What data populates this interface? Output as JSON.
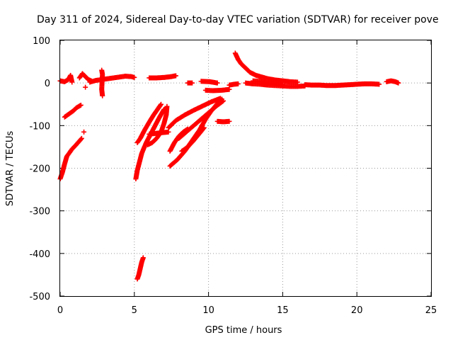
{
  "chart_data": {
    "type": "scatter",
    "title": "Day 311 of 2024, Sidereal Day-to-day VTEC variation (SDTVAR) for receiver pove",
    "xlabel": "GPS time / hours",
    "ylabel": "SDTVAR / TECUs",
    "xlim": [
      0,
      25
    ],
    "ylim": [
      -500,
      100
    ],
    "xticks": [
      0,
      5,
      10,
      15,
      20,
      25
    ],
    "yticks": [
      100,
      0,
      -100,
      -200,
      -300,
      -400,
      -500
    ],
    "grid": true,
    "marker": "plus",
    "color": "#ff0000",
    "series": [
      {
        "segments": [
          [
            [
              0.0,
              5
            ],
            [
              0.3,
              3
            ],
            [
              0.55,
              8
            ],
            [
              0.7,
              18
            ],
            [
              0.8,
              2
            ]
          ],
          [
            [
              0.0,
              -225
            ],
            [
              0.15,
              -210
            ],
            [
              0.3,
              -190
            ],
            [
              0.45,
              -172
            ],
            [
              0.6,
              -165
            ],
            [
              0.8,
              -155
            ],
            [
              1.0,
              -148
            ],
            [
              1.2,
              -140
            ],
            [
              1.45,
              -130
            ]
          ],
          [
            [
              0.3,
              -80
            ],
            [
              0.5,
              -75
            ],
            [
              0.7,
              -70
            ],
            [
              0.9,
              -65
            ],
            [
              1.1,
              -58
            ],
            [
              1.4,
              -52
            ]
          ],
          [
            [
              1.3,
              12
            ],
            [
              1.5,
              22
            ],
            [
              1.7,
              15
            ],
            [
              1.9,
              8
            ],
            [
              2.1,
              5
            ]
          ],
          [
            [
              1.6,
              -115
            ]
          ],
          [
            [
              1.7,
              -10
            ]
          ],
          [
            [
              2.0,
              2
            ],
            [
              2.4,
              6
            ],
            [
              2.8,
              8
            ],
            [
              3.2,
              10
            ],
            [
              3.6,
              12
            ],
            [
              4.0,
              14
            ],
            [
              4.4,
              16
            ],
            [
              4.8,
              15
            ],
            [
              5.0,
              13
            ]
          ],
          [
            [
              2.8,
              30
            ],
            [
              2.85,
              20
            ],
            [
              2.8,
              -15
            ],
            [
              2.85,
              -30
            ]
          ],
          [
            [
              5.1,
              -225
            ],
            [
              5.2,
              -205
            ],
            [
              5.35,
              -185
            ],
            [
              5.5,
              -165
            ],
            [
              5.8,
              -140
            ],
            [
              6.1,
              -120
            ],
            [
              6.4,
              -100
            ],
            [
              6.7,
              -80
            ],
            [
              7.0,
              -62
            ]
          ],
          [
            [
              5.2,
              -140
            ],
            [
              5.4,
              -130
            ],
            [
              5.7,
              -110
            ],
            [
              6.0,
              -92
            ],
            [
              6.3,
              -75
            ],
            [
              6.6,
              -60
            ],
            [
              6.8,
              -50
            ]
          ],
          [
            [
              5.9,
              -145
            ],
            [
              6.2,
              -140
            ],
            [
              6.5,
              -130
            ],
            [
              6.8,
              -115
            ],
            [
              7.0,
              -95
            ],
            [
              7.15,
              -75
            ],
            [
              7.2,
              -55
            ]
          ],
          [
            [
              6.0,
              -120
            ],
            [
              6.5,
              -118
            ],
            [
              7.0,
              -116
            ],
            [
              7.3,
              -115
            ]
          ],
          [
            [
              5.2,
              -460
            ],
            [
              5.3,
              -450
            ],
            [
              5.4,
              -435
            ],
            [
              5.5,
              -420
            ],
            [
              5.6,
              -410
            ]
          ],
          [
            [
              6.0,
              12
            ],
            [
              6.5,
              12
            ],
            [
              7.0,
              13
            ],
            [
              7.5,
              15
            ],
            [
              7.8,
              17
            ]
          ],
          [
            [
              7.3,
              -105
            ],
            [
              7.8,
              -88
            ],
            [
              8.4,
              -75
            ],
            [
              9.0,
              -64
            ],
            [
              9.6,
              -54
            ],
            [
              10.2,
              -44
            ],
            [
              10.8,
              -36
            ]
          ],
          [
            [
              7.4,
              -160
            ],
            [
              7.7,
              -140
            ],
            [
              8.0,
              -125
            ],
            [
              8.3,
              -115
            ],
            [
              8.6,
              -108
            ]
          ],
          [
            [
              7.4,
              -195
            ],
            [
              7.9,
              -180
            ],
            [
              8.4,
              -160
            ],
            [
              8.9,
              -135
            ],
            [
              9.4,
              -110
            ],
            [
              9.8,
              -85
            ],
            [
              10.2,
              -65
            ],
            [
              10.6,
              -48
            ],
            [
              10.9,
              -38
            ]
          ],
          [
            [
              8.0,
              -130
            ],
            [
              8.5,
              -115
            ],
            [
              9.0,
              -100
            ],
            [
              9.5,
              -85
            ],
            [
              10.0,
              -70
            ],
            [
              10.5,
              -55
            ],
            [
              11.0,
              -42
            ]
          ],
          [
            [
              8.2,
              -160
            ],
            [
              8.6,
              -150
            ],
            [
              9.0,
              -135
            ],
            [
              9.4,
              -118
            ],
            [
              9.7,
              -105
            ]
          ],
          [
            [
              8.6,
              0
            ],
            [
              8.9,
              0
            ]
          ],
          [
            [
              9.5,
              4
            ],
            [
              10.1,
              3
            ],
            [
              10.6,
              0
            ]
          ],
          [
            [
              9.8,
              -17
            ],
            [
              10.3,
              -18
            ],
            [
              10.9,
              -17
            ],
            [
              11.4,
              -15
            ]
          ],
          [
            [
              10.6,
              -90
            ],
            [
              11.0,
              -91
            ],
            [
              11.4,
              -90
            ]
          ],
          [
            [
              11.4,
              -5
            ],
            [
              11.7,
              -3
            ],
            [
              12.0,
              -2
            ]
          ],
          [
            [
              11.8,
              70
            ],
            [
              12.0,
              55
            ],
            [
              12.2,
              45
            ],
            [
              12.5,
              35
            ],
            [
              12.8,
              25
            ],
            [
              13.2,
              18
            ],
            [
              13.6,
              14
            ],
            [
              14.0,
              10
            ],
            [
              14.5,
              7
            ],
            [
              15.0,
              5
            ],
            [
              15.5,
              3
            ],
            [
              16.0,
              2
            ]
          ],
          [
            [
              12.5,
              0
            ],
            [
              13.0,
              -2
            ],
            [
              13.5,
              -3
            ],
            [
              14.0,
              -5
            ],
            [
              14.5,
              -6
            ],
            [
              15.0,
              -7
            ],
            [
              15.5,
              -8
            ],
            [
              16.0,
              -8
            ],
            [
              16.5,
              -7
            ]
          ],
          [
            [
              13.0,
              5
            ],
            [
              13.5,
              4
            ],
            [
              14.0,
              0
            ],
            [
              14.5,
              -2
            ],
            [
              15.0,
              -4
            ]
          ],
          [
            [
              16.5,
              -4
            ],
            [
              17.0,
              -5
            ],
            [
              17.5,
              -5
            ],
            [
              18.0,
              -6
            ],
            [
              18.5,
              -6
            ],
            [
              19.0,
              -5
            ],
            [
              19.5,
              -4
            ],
            [
              20.0,
              -3
            ],
            [
              20.5,
              -2
            ],
            [
              21.0,
              -2
            ],
            [
              21.5,
              -3
            ]
          ],
          [
            [
              22.0,
              3
            ],
            [
              22.3,
              5
            ],
            [
              22.6,
              3
            ],
            [
              22.8,
              0
            ]
          ]
        ]
      }
    ]
  }
}
